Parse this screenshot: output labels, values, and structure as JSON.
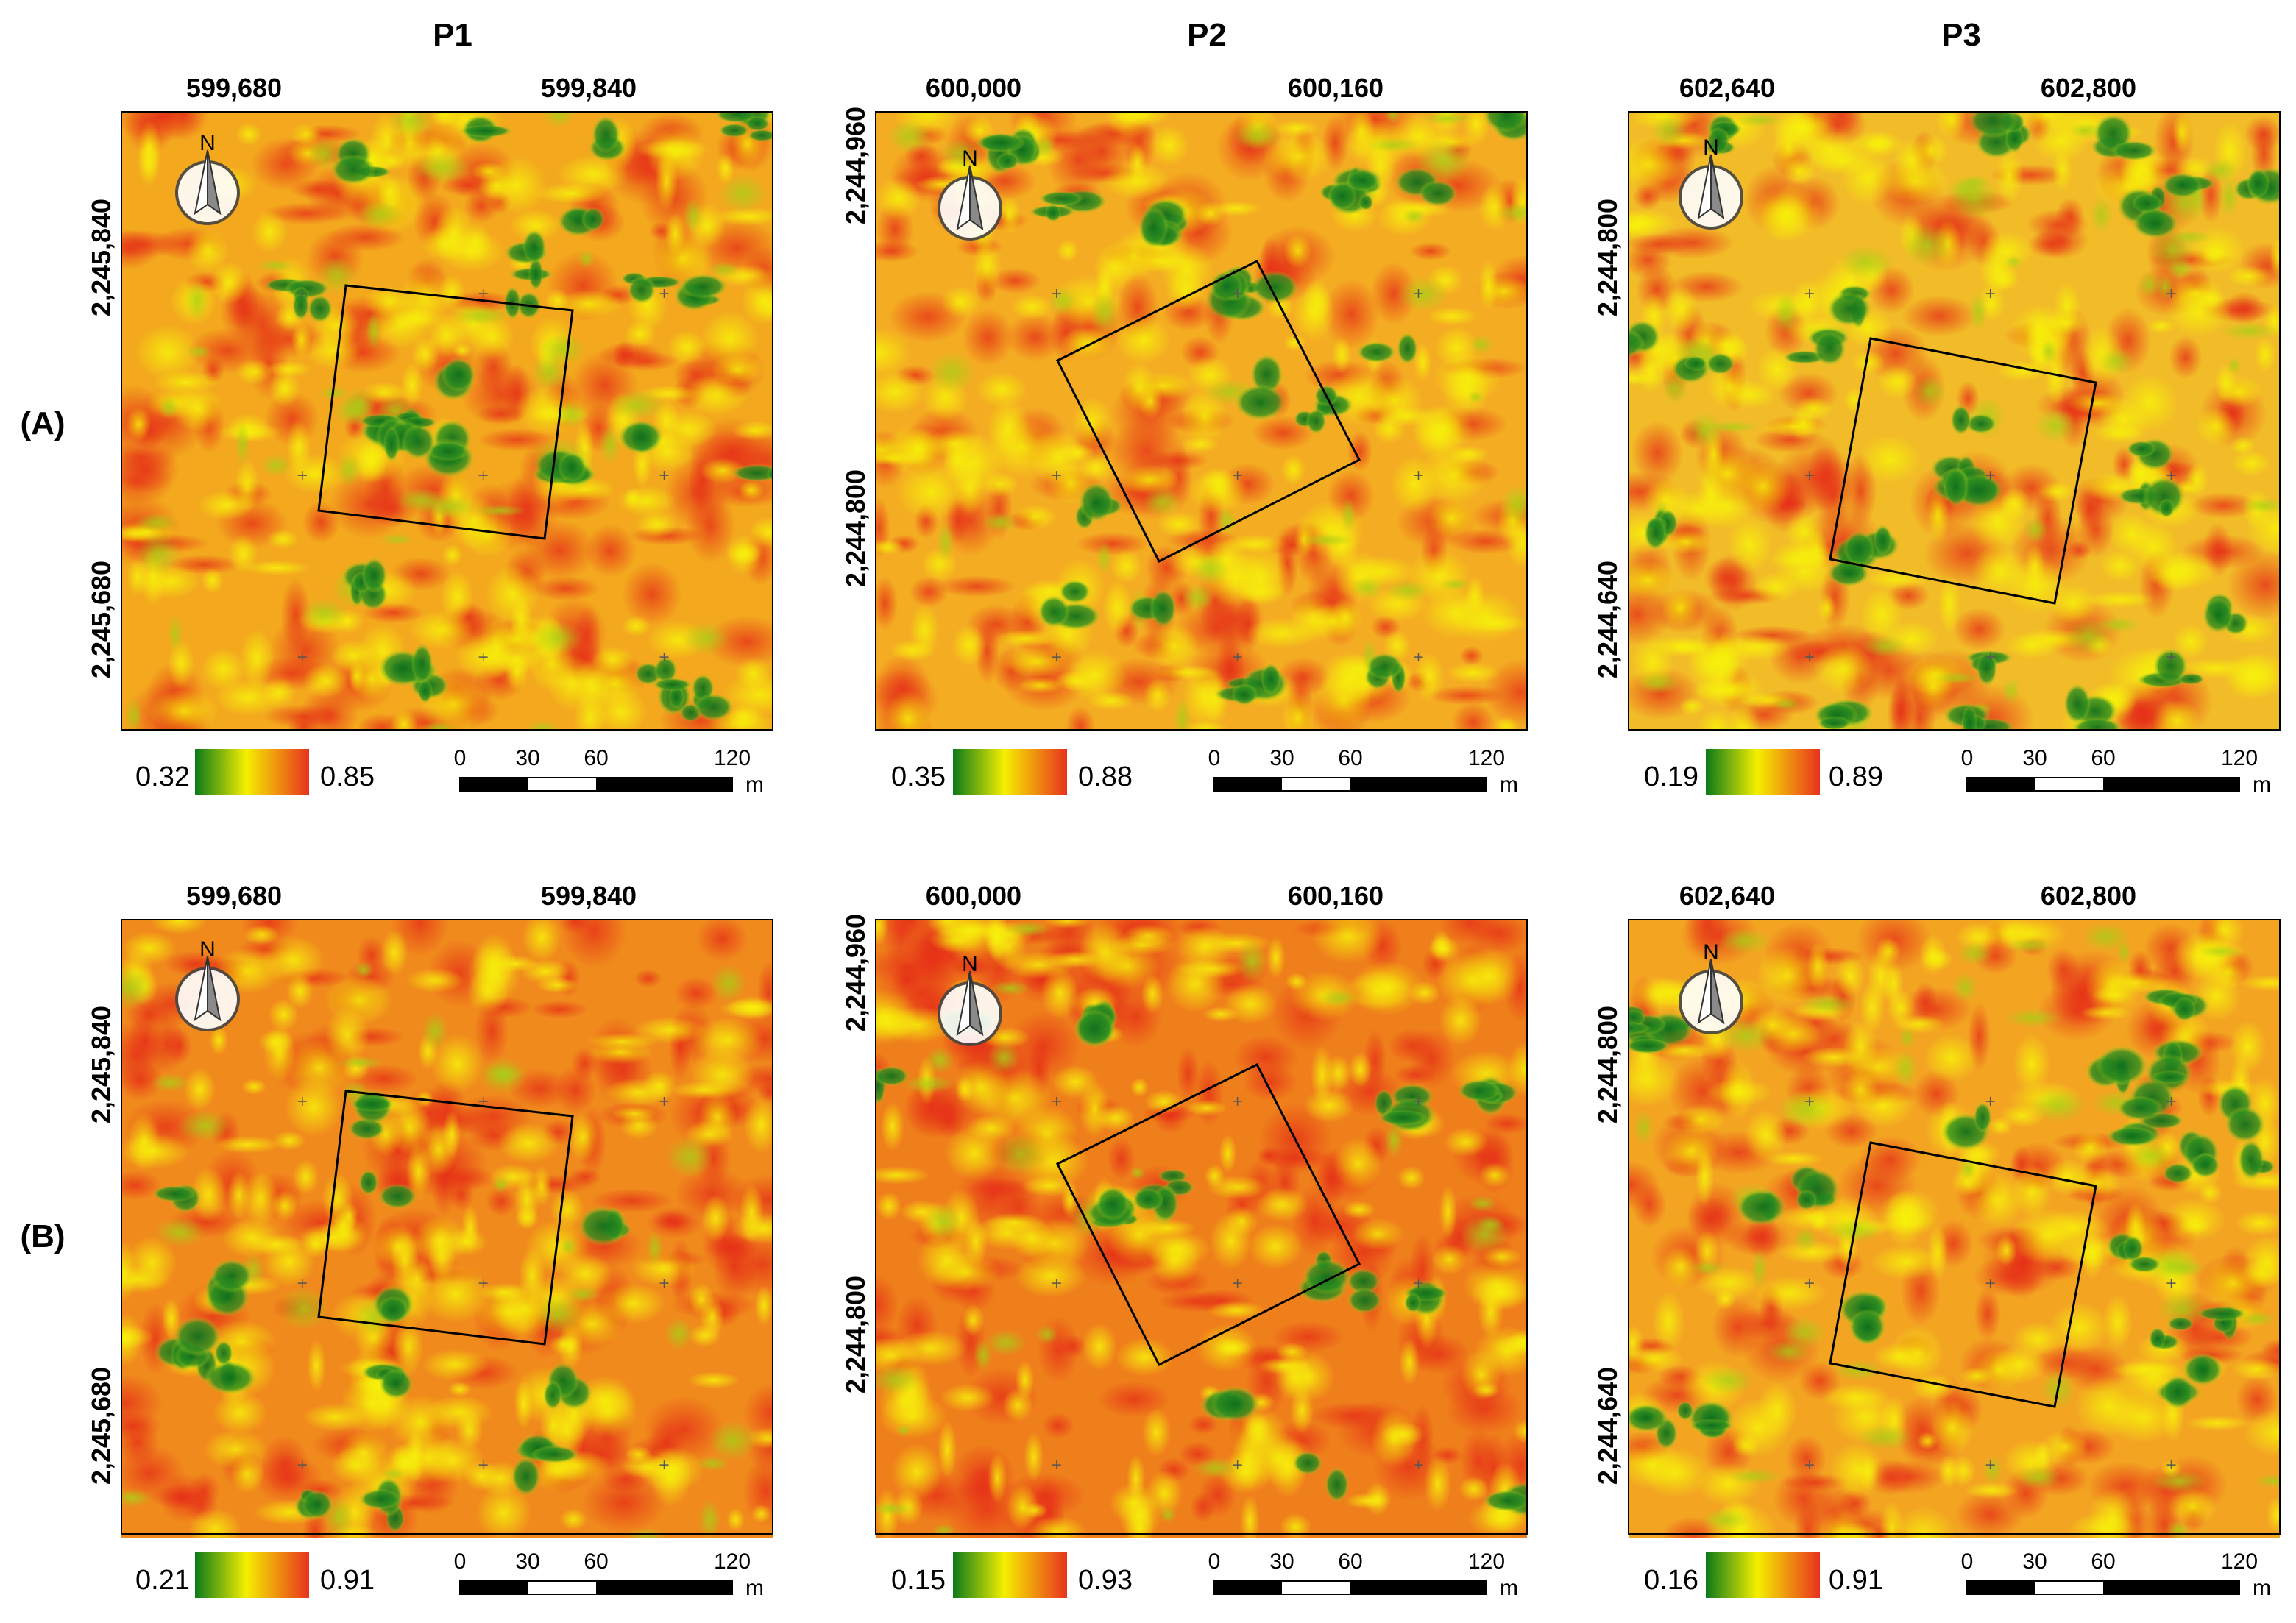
{
  "figure": {
    "columns": [
      {
        "title": "P1",
        "x_ticks": [
          "599,680",
          "599,840"
        ],
        "y_ticks": [
          "2,245,840",
          "2,245,680"
        ]
      },
      {
        "title": "P2",
        "x_ticks": [
          "600,000",
          "600,160"
        ],
        "y_ticks": [
          "2,244,960",
          "2,244,800"
        ]
      },
      {
        "title": "P3",
        "x_ticks": [
          "602,640",
          "602,800"
        ],
        "y_ticks": [
          "2,244,800",
          "2,244,640"
        ]
      }
    ],
    "rows": [
      {
        "label": "(A)",
        "legends": [
          {
            "min": "0.32",
            "max": "0.85"
          },
          {
            "min": "0.35",
            "max": "0.88"
          },
          {
            "min": "0.19",
            "max": "0.89"
          }
        ]
      },
      {
        "label": "(B)",
        "legends": [
          {
            "min": "0.21",
            "max": "0.91"
          },
          {
            "min": "0.15",
            "max": "0.93"
          },
          {
            "min": "0.16",
            "max": "0.91"
          }
        ]
      }
    ],
    "north_label": "N",
    "scale_bar": {
      "ticks": [
        "0",
        "30",
        "60",
        "120"
      ],
      "unit": "m"
    },
    "colors": {
      "low": "#0a7a1a",
      "mid": "#f5ef00",
      "high": "#e8321e",
      "frame": "#000000"
    }
  }
}
